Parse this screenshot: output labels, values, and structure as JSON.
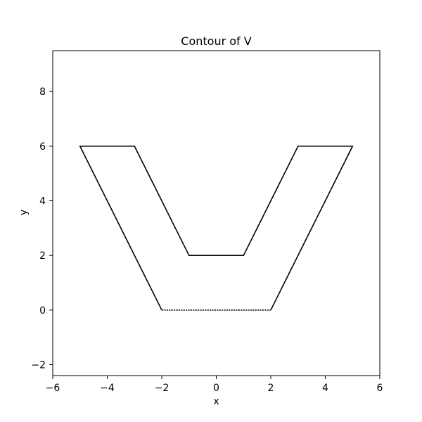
{
  "chart_data": {
    "type": "line",
    "title": "Contour of V",
    "xlabel": "x",
    "ylabel": "y",
    "xlim": [
      -6,
      6
    ],
    "ylim": [
      -2.4,
      9.5
    ],
    "xticks": [
      -6,
      -4,
      -2,
      0,
      2,
      4,
      6
    ],
    "yticks": [
      -2,
      0,
      2,
      4,
      6,
      8
    ],
    "grid": false,
    "series": [
      {
        "color": "#000000",
        "closed": true,
        "points": [
          [
            -5,
            6
          ],
          [
            -3,
            6
          ],
          [
            -1,
            2
          ],
          [
            1,
            2
          ],
          [
            3,
            6
          ],
          [
            5,
            6
          ],
          [
            2,
            0
          ],
          [
            -2,
            0
          ]
        ]
      }
    ],
    "bottom_segment_style": {
      "x": [
        -2,
        2
      ],
      "y": 0,
      "appearance": "dashed"
    }
  }
}
